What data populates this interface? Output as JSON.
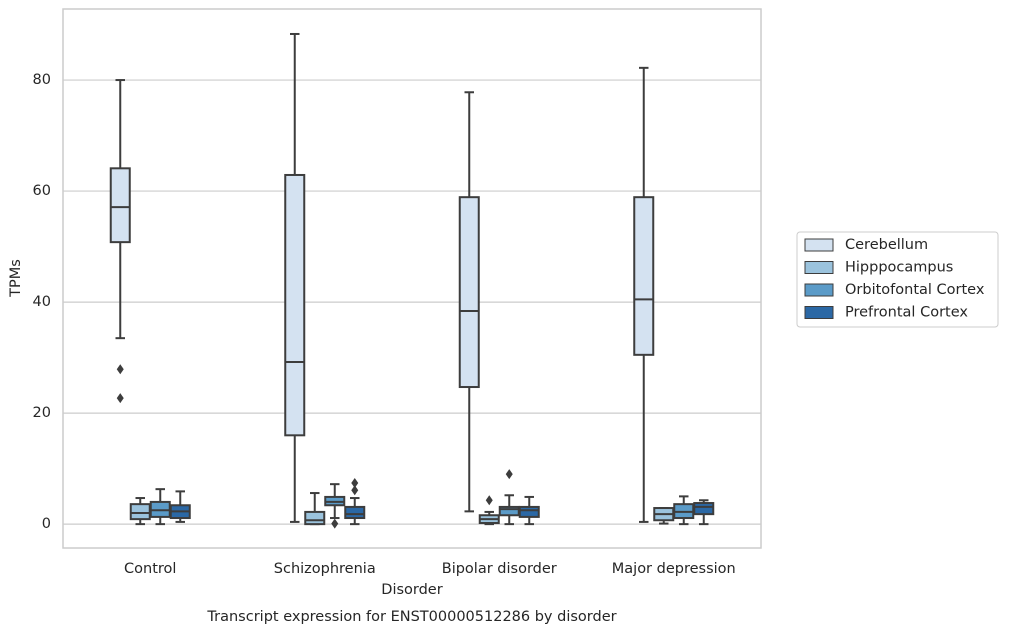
{
  "chart_data": {
    "type": "box",
    "title": "Transcript expression for ENST00000512286 by disorder",
    "x_label": "Disorder",
    "y_label": "TPMs",
    "categories": [
      "Control",
      "Schizophrenia",
      "Bipolar disorder",
      "Major depression"
    ],
    "ylim": [
      -4.3,
      92.8
    ],
    "yticks": [
      0,
      20,
      40,
      60,
      80
    ],
    "grid": true,
    "legend": "right",
    "series": [
      {
        "name": "Cerebellum",
        "color": "#d4e2f1",
        "values": [
          {
            "min": 33.5,
            "q1": 50.8,
            "median": 57.1,
            "q3": 64.1,
            "max": 80,
            "outliers": [
              27.9,
              22.7
            ]
          },
          {
            "min": 0.4,
            "q1": 16.0,
            "median": 29.2,
            "q3": 62.9,
            "max": 88.3
          },
          {
            "min": 2.3,
            "q1": 24.7,
            "median": 38.4,
            "q3": 58.9,
            "max": 77.8
          },
          {
            "min": 0.4,
            "q1": 30.5,
            "median": 40.5,
            "q3": 58.9,
            "max": 82.2
          }
        ]
      },
      {
        "name": "Hipppocampus",
        "color": "#9bc3dd",
        "values": [
          {
            "min": 0,
            "q1": 0.9,
            "median": 2.0,
            "q3": 3.6,
            "max": 4.7
          },
          {
            "min": 0,
            "q1": 0,
            "median": 0.7,
            "q3": 2.2,
            "max": 5.6
          },
          {
            "min": 0,
            "q1": 0.2,
            "median": 0.9,
            "q3": 1.6,
            "max": 2.2,
            "outliers": [
              4.3
            ]
          },
          {
            "min": 0.1,
            "q1": 0.7,
            "median": 1.8,
            "q3": 2.9,
            "max": 2.9
          }
        ]
      },
      {
        "name": "Orbitofontal Cortex",
        "color": "#5b9bc8",
        "values": [
          {
            "min": 0,
            "q1": 1.3,
            "median": 2.5,
            "q3": 4.0,
            "max": 6.3
          },
          {
            "min": 1.1,
            "q1": 3.4,
            "median": 4.0,
            "q3": 4.9,
            "max": 7.2,
            "outliers": [
              0.1
            ]
          },
          {
            "min": 0,
            "q1": 1.6,
            "median": 2.7,
            "q3": 3.1,
            "max": 5.2,
            "outliers": [
              9.0
            ]
          },
          {
            "min": 0,
            "q1": 1.1,
            "median": 2.2,
            "q3": 3.6,
            "max": 5.0
          }
        ]
      },
      {
        "name": "Prefrontal Cortex",
        "color": "#2b68a5",
        "values": [
          {
            "min": 0.4,
            "q1": 1.1,
            "median": 2.3,
            "q3": 3.4,
            "max": 5.9
          },
          {
            "min": 0,
            "q1": 1.1,
            "median": 1.8,
            "q3": 3.1,
            "max": 4.7,
            "outliers": [
              7.4,
              6.1
            ]
          },
          {
            "min": 0,
            "q1": 1.3,
            "median": 2.5,
            "q3": 3.1,
            "max": 4.9
          },
          {
            "min": 0,
            "q1": 1.8,
            "median": 3.1,
            "q3": 3.8,
            "max": 4.3
          }
        ]
      }
    ]
  }
}
